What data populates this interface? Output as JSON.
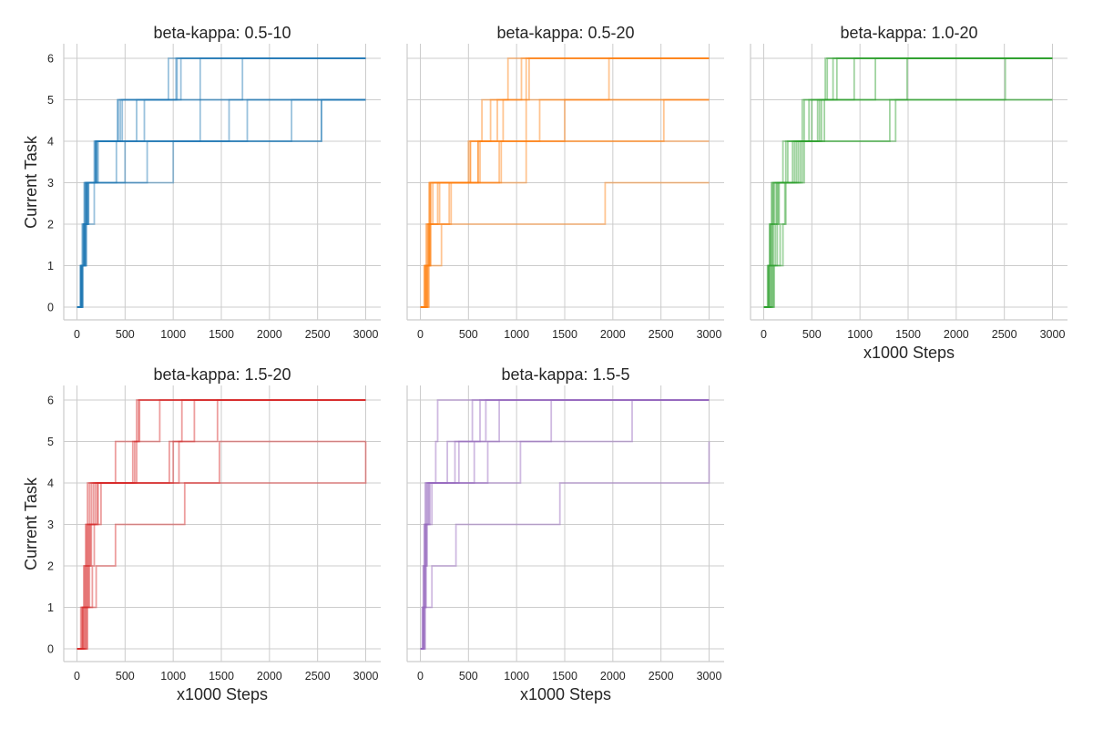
{
  "figure": {
    "ylabel": "Current Task",
    "xlabel": "x1000 Steps"
  },
  "chart_data": [
    {
      "type": "line",
      "title": "beta-kappa: 0.5-10",
      "color": "#1f77b4",
      "xlim": [
        0,
        3000
      ],
      "ylim": [
        0,
        6
      ],
      "xticks": [
        0,
        500,
        1000,
        1500,
        2000,
        2500,
        3000
      ],
      "yticks": [
        0,
        1,
        2,
        3,
        4,
        5,
        6
      ],
      "series": [
        {
          "x": [
            0,
            40,
            60,
            80,
            200,
            420,
            950,
            3000
          ],
          "y": [
            0,
            1,
            2,
            3,
            4,
            5,
            6,
            6
          ]
        },
        {
          "x": [
            0,
            45,
            70,
            90,
            190,
            450,
            1030,
            3000
          ],
          "y": [
            0,
            1,
            2,
            3,
            4,
            5,
            6,
            6
          ]
        },
        {
          "x": [
            0,
            35,
            55,
            75,
            180,
            470,
            1080,
            3000
          ],
          "y": [
            0,
            1,
            2,
            3,
            4,
            5,
            6,
            6
          ]
        },
        {
          "x": [
            0,
            50,
            80,
            110,
            210,
            620,
            1280,
            3000
          ],
          "y": [
            0,
            1,
            2,
            3,
            4,
            5,
            6,
            6
          ]
        },
        {
          "x": [
            0,
            60,
            90,
            120,
            220,
            700,
            1720,
            3000
          ],
          "y": [
            0,
            1,
            2,
            3,
            4,
            5,
            6,
            6
          ]
        },
        {
          "x": [
            0,
            55,
            85,
            100,
            200,
            430,
            1040,
            3000
          ],
          "y": [
            0,
            1,
            2,
            3,
            4,
            5,
            6,
            6
          ]
        },
        {
          "x": [
            0,
            40,
            70,
            90,
            410,
            1280,
            3000
          ],
          "y": [
            0,
            1,
            2,
            3,
            4,
            5,
            5
          ]
        },
        {
          "x": [
            0,
            45,
            80,
            100,
            500,
            1580,
            3000
          ],
          "y": [
            0,
            1,
            2,
            3,
            4,
            5,
            5
          ]
        },
        {
          "x": [
            0,
            50,
            90,
            120,
            730,
            1770,
            3000
          ],
          "y": [
            0,
            1,
            2,
            3,
            4,
            5,
            5
          ]
        },
        {
          "x": [
            0,
            60,
            100,
            180,
            1000,
            2230,
            3000
          ],
          "y": [
            0,
            1,
            2,
            3,
            4,
            5,
            5
          ]
        },
        {
          "x": [
            0,
            40,
            70,
            100,
            190,
            2540,
            3000
          ],
          "y": [
            0,
            1,
            2,
            3,
            4,
            5,
            5
          ]
        },
        {
          "x": [
            0,
            50,
            80,
            110,
            200,
            2540,
            3000
          ],
          "y": [
            0,
            1,
            2,
            3,
            4,
            5,
            5
          ]
        }
      ]
    },
    {
      "type": "line",
      "title": "beta-kappa: 0.5-20",
      "color": "#ff7f0e",
      "xlim": [
        0,
        3000
      ],
      "ylim": [
        0,
        6
      ],
      "xticks": [
        0,
        500,
        1000,
        1500,
        2000,
        2500,
        3000
      ],
      "yticks": [
        0,
        1,
        2,
        3,
        4,
        5,
        6
      ],
      "series": [
        {
          "x": [
            0,
            40,
            60,
            90,
            500,
            640,
            910,
            3000
          ],
          "y": [
            0,
            1,
            2,
            3,
            4,
            5,
            6,
            6
          ]
        },
        {
          "x": [
            0,
            50,
            80,
            100,
            520,
            730,
            1050,
            3000
          ],
          "y": [
            0,
            1,
            2,
            3,
            4,
            5,
            6,
            6
          ]
        },
        {
          "x": [
            0,
            60,
            90,
            110,
            600,
            800,
            1100,
            3000
          ],
          "y": [
            0,
            1,
            2,
            3,
            4,
            5,
            6,
            6
          ]
        },
        {
          "x": [
            0,
            70,
            100,
            130,
            620,
            860,
            1130,
            3000
          ],
          "y": [
            0,
            1,
            2,
            3,
            4,
            5,
            6,
            6
          ]
        },
        {
          "x": [
            0,
            45,
            70,
            100,
            520,
            1100,
            1960,
            3000
          ],
          "y": [
            0,
            1,
            2,
            3,
            4,
            5,
            6,
            6
          ]
        },
        {
          "x": [
            0,
            55,
            85,
            180,
            600,
            1500,
            3000
          ],
          "y": [
            0,
            1,
            2,
            3,
            4,
            5,
            5
          ]
        },
        {
          "x": [
            0,
            65,
            95,
            200,
            820,
            1240,
            3000
          ],
          "y": [
            0,
            1,
            2,
            3,
            4,
            5,
            5
          ]
        },
        {
          "x": [
            0,
            75,
            220,
            300,
            840,
            2530,
            3000
          ],
          "y": [
            0,
            1,
            2,
            3,
            4,
            5,
            5
          ]
        },
        {
          "x": [
            0,
            80,
            100,
            320,
            1100,
            3000
          ],
          "y": [
            0,
            1,
            2,
            3,
            4,
            4
          ]
        },
        {
          "x": [
            0,
            90,
            110,
            1920,
            3000
          ],
          "y": [
            0,
            1,
            2,
            3,
            3
          ]
        }
      ]
    },
    {
      "type": "line",
      "title": "beta-kappa: 1.0-20",
      "color": "#2ca02c",
      "xlim": [
        0,
        3000
      ],
      "ylim": [
        0,
        6
      ],
      "xticks": [
        0,
        500,
        1000,
        1500,
        2000,
        2500,
        3000
      ],
      "yticks": [
        0,
        1,
        2,
        3,
        4,
        5,
        6
      ],
      "series": [
        {
          "x": [
            0,
            40,
            60,
            80,
            200,
            400,
            640,
            3000
          ],
          "y": [
            0,
            1,
            2,
            3,
            4,
            5,
            6,
            6
          ]
        },
        {
          "x": [
            0,
            50,
            70,
            90,
            230,
            420,
            660,
            3000
          ],
          "y": [
            0,
            1,
            2,
            3,
            4,
            5,
            6,
            6
          ]
        },
        {
          "x": [
            0,
            45,
            65,
            100,
            250,
            470,
            720,
            3000
          ],
          "y": [
            0,
            1,
            2,
            3,
            4,
            5,
            6,
            6
          ]
        },
        {
          "x": [
            0,
            55,
            80,
            110,
            300,
            500,
            760,
            3000
          ],
          "y": [
            0,
            1,
            2,
            3,
            4,
            5,
            6,
            6
          ]
        },
        {
          "x": [
            0,
            60,
            90,
            130,
            320,
            560,
            940,
            3000
          ],
          "y": [
            0,
            1,
            2,
            3,
            4,
            5,
            6,
            6
          ]
        },
        {
          "x": [
            0,
            70,
            100,
            140,
            340,
            580,
            1160,
            3000
          ],
          "y": [
            0,
            1,
            2,
            3,
            4,
            5,
            6,
            6
          ]
        },
        {
          "x": [
            0,
            80,
            120,
            150,
            360,
            600,
            1490,
            3000
          ],
          "y": [
            0,
            1,
            2,
            3,
            4,
            5,
            6,
            6
          ]
        },
        {
          "x": [
            0,
            90,
            140,
            160,
            380,
            630,
            2510,
            3000
          ],
          "y": [
            0,
            1,
            2,
            3,
            4,
            5,
            6,
            6
          ]
        },
        {
          "x": [
            0,
            100,
            200,
            230,
            400,
            1310,
            3000
          ],
          "y": [
            0,
            1,
            2,
            3,
            4,
            5,
            5
          ]
        },
        {
          "x": [
            0,
            110,
            170,
            220,
            420,
            1370,
            3000
          ],
          "y": [
            0,
            1,
            2,
            3,
            4,
            5,
            5
          ]
        }
      ]
    },
    {
      "type": "line",
      "title": "beta-kappa: 1.5-20",
      "color": "#d62728",
      "xlim": [
        0,
        3000
      ],
      "ylim": [
        0,
        6
      ],
      "xticks": [
        0,
        500,
        1000,
        1500,
        2000,
        2500,
        3000
      ],
      "yticks": [
        0,
        1,
        2,
        3,
        4,
        5,
        6
      ],
      "series": [
        {
          "x": [
            0,
            40,
            70,
            90,
            110,
            400,
            620,
            3000
          ],
          "y": [
            0,
            1,
            2,
            3,
            4,
            5,
            6,
            6
          ]
        },
        {
          "x": [
            0,
            50,
            80,
            100,
            130,
            580,
            640,
            3000
          ],
          "y": [
            0,
            1,
            2,
            3,
            4,
            5,
            6,
            6
          ]
        },
        {
          "x": [
            0,
            60,
            90,
            110,
            150,
            600,
            650,
            3000
          ],
          "y": [
            0,
            1,
            2,
            3,
            4,
            5,
            6,
            6
          ]
        },
        {
          "x": [
            0,
            70,
            100,
            120,
            170,
            620,
            860,
            3000
          ],
          "y": [
            0,
            1,
            2,
            3,
            4,
            5,
            6,
            6
          ]
        },
        {
          "x": [
            0,
            80,
            110,
            130,
            190,
            960,
            1090,
            3000
          ],
          "y": [
            0,
            1,
            2,
            3,
            4,
            5,
            6,
            6
          ]
        },
        {
          "x": [
            0,
            90,
            120,
            140,
            220,
            1000,
            1220,
            3000
          ],
          "y": [
            0,
            1,
            2,
            3,
            4,
            5,
            6,
            6
          ]
        },
        {
          "x": [
            0,
            100,
            130,
            150,
            250,
            1060,
            1460,
            3000
          ],
          "y": [
            0,
            1,
            2,
            3,
            4,
            5,
            6,
            6
          ]
        },
        {
          "x": [
            0,
            110,
            200,
            400,
            1120,
            3000
          ],
          "y": [
            0,
            1,
            2,
            3,
            4,
            5
          ]
        },
        {
          "x": [
            0,
            60,
            160,
            180,
            210,
            1480,
            3000
          ],
          "y": [
            0,
            1,
            2,
            3,
            4,
            5,
            5
          ]
        }
      ]
    },
    {
      "type": "line",
      "title": "beta-kappa: 1.5-5",
      "color": "#9467bd",
      "xlim": [
        0,
        3000
      ],
      "ylim": [
        0,
        6
      ],
      "xticks": [
        0,
        500,
        1000,
        1500,
        2000,
        2500,
        3000
      ],
      "yticks": [
        0,
        1,
        2,
        3,
        4,
        5,
        6
      ],
      "series": [
        {
          "x": [
            0,
            20,
            30,
            40,
            50,
            160,
            180,
            3000
          ],
          "y": [
            0,
            1,
            2,
            3,
            4,
            5,
            6,
            6
          ]
        },
        {
          "x": [
            0,
            25,
            35,
            45,
            60,
            280,
            540,
            3000
          ],
          "y": [
            0,
            1,
            2,
            3,
            4,
            5,
            6,
            6
          ]
        },
        {
          "x": [
            0,
            30,
            40,
            50,
            70,
            360,
            620,
            3000
          ],
          "y": [
            0,
            1,
            2,
            3,
            4,
            5,
            6,
            6
          ]
        },
        {
          "x": [
            0,
            35,
            45,
            55,
            80,
            400,
            680,
            3000
          ],
          "y": [
            0,
            1,
            2,
            3,
            4,
            5,
            6,
            6
          ]
        },
        {
          "x": [
            0,
            40,
            50,
            60,
            90,
            560,
            820,
            3000
          ],
          "y": [
            0,
            1,
            2,
            3,
            4,
            5,
            6,
            6
          ]
        },
        {
          "x": [
            0,
            45,
            55,
            65,
            100,
            700,
            1360,
            3000
          ],
          "y": [
            0,
            1,
            2,
            3,
            4,
            5,
            6,
            6
          ]
        },
        {
          "x": [
            0,
            50,
            60,
            70,
            120,
            1040,
            2200,
            3000
          ],
          "y": [
            0,
            1,
            2,
            3,
            4,
            5,
            6,
            6
          ]
        },
        {
          "x": [
            0,
            30,
            120,
            370,
            1450,
            3000
          ],
          "y": [
            0,
            1,
            2,
            3,
            4,
            5
          ]
        }
      ]
    }
  ]
}
